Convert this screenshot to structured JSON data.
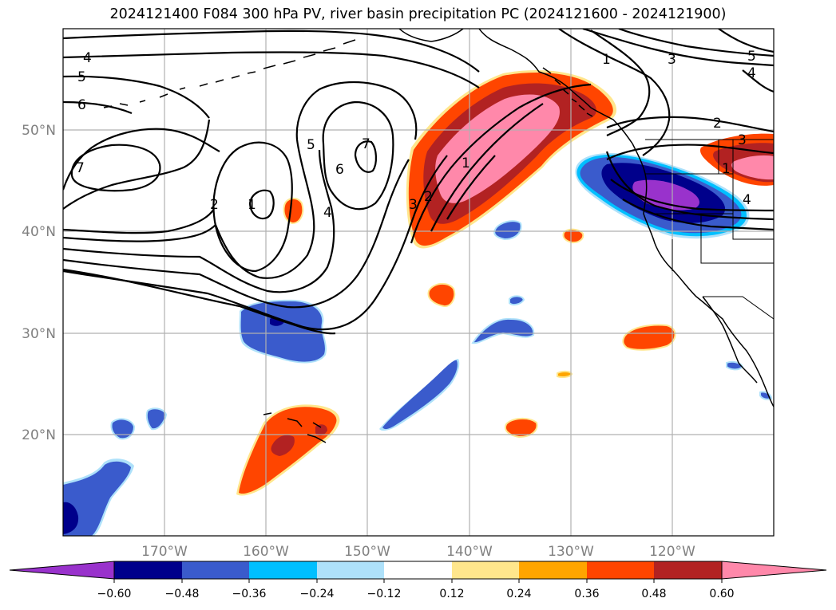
{
  "title": "2024121400 F084 300 hPa PV, river basin precipitation PC (2024121600 - 2024121900)",
  "longitude_ticks": [
    "170°W",
    "160°W",
    "150°W",
    "140°W",
    "130°W",
    "120°W"
  ],
  "latitude_ticks": [
    "50°N",
    "40°N",
    "30°N",
    "20°N"
  ],
  "colorbar": {
    "ticks": [
      "−0.60",
      "−0.48",
      "−0.36",
      "−0.24",
      "−0.12",
      "0.12",
      "0.24",
      "0.36",
      "0.48",
      "0.60"
    ],
    "colors": [
      "#9932cc",
      "#00008b",
      "#3a5bcc",
      "#00bfff",
      "#aee1fa",
      "#ffffff",
      "#ffe68c",
      "#ffa500",
      "#ff4500",
      "#b22222",
      "#ff88aa"
    ]
  },
  "contour_labels": [
    "4",
    "5",
    "6",
    "7",
    "2",
    "1",
    "5",
    "6",
    "7",
    "4",
    "3",
    "2",
    "1",
    "1",
    "3",
    "5",
    "4",
    "2",
    "3",
    "1",
    "4"
  ],
  "colors": {
    "grid": "#b0b0b0",
    "contour": "#000000",
    "coast": "#000000"
  }
}
